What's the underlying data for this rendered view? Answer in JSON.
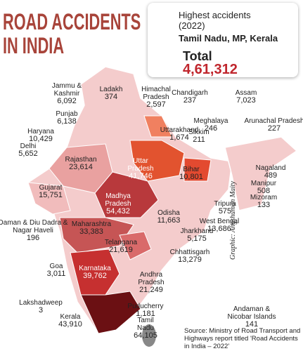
{
  "header": {
    "title": "ROAD ACCIDENTS IN INDIA"
  },
  "highlight": {
    "heading": "Highest accidents (2022)",
    "states": "Tamil Nadu, MP, Kerala",
    "total_label": "Total",
    "total": "4,61,312"
  },
  "regions": [
    {
      "name": "Jammu & Kashmir",
      "value": "6,092"
    },
    {
      "name": "Ladakh",
      "value": "374"
    },
    {
      "name": "Himachal Pradesh",
      "value": "2,597"
    },
    {
      "name": "Chandigarh",
      "value": "237"
    },
    {
      "name": "Assam",
      "value": "7,023"
    },
    {
      "name": "Punjab",
      "value": "6,138"
    },
    {
      "name": "Haryana",
      "value": "10,429"
    },
    {
      "name": "Uttarakhand",
      "value": "1,674"
    },
    {
      "name": "Meghalaya",
      "value": "246"
    },
    {
      "name": "Arunachal Pradesh",
      "value": "227"
    },
    {
      "name": "Sikkim",
      "value": "211"
    },
    {
      "name": "Delhi",
      "value": "5,652"
    },
    {
      "name": "Rajasthan",
      "value": "23,614"
    },
    {
      "name": "Uttar Pradesh",
      "value": "41,746"
    },
    {
      "name": "Bihar",
      "value": "10,801"
    },
    {
      "name": "Nagaland",
      "value": "489"
    },
    {
      "name": "Manipur",
      "value": "508"
    },
    {
      "name": "Gujarat",
      "value": "15,751"
    },
    {
      "name": "Madhya Pradesh",
      "value": "54,432"
    },
    {
      "name": "Mizoram",
      "value": "133"
    },
    {
      "name": "Tripura",
      "value": "575"
    },
    {
      "name": "Odisha",
      "value": "11,663"
    },
    {
      "name": "West Bengal",
      "value": "13,686"
    },
    {
      "name": "Daman & Diu Dadra & Nagar Haveli",
      "value": "196"
    },
    {
      "name": "Maharashtra",
      "value": "33,383"
    },
    {
      "name": "Jharkhand",
      "value": "5,175"
    },
    {
      "name": "Telangana",
      "value": "21,619"
    },
    {
      "name": "Chhattisgarh",
      "value": "13,279"
    },
    {
      "name": "Goa",
      "value": "3,011"
    },
    {
      "name": "Karnataka",
      "value": "39,762"
    },
    {
      "name": "Andhra Pradesh",
      "value": "21,249"
    },
    {
      "name": "Lakshadweep",
      "value": "3"
    },
    {
      "name": "Puducherry",
      "value": "1,181"
    },
    {
      "name": "Kerala",
      "value": "43,910"
    },
    {
      "name": "Tamil Nadu",
      "value": "64,105"
    },
    {
      "name": "Andaman & Nicobar Islands",
      "value": "141"
    }
  ],
  "source": "Source: Ministry of Road Transport and Highways report titled 'Road Accidents in India – 2022'",
  "credit": "Graphic: Angshuman Maity"
}
